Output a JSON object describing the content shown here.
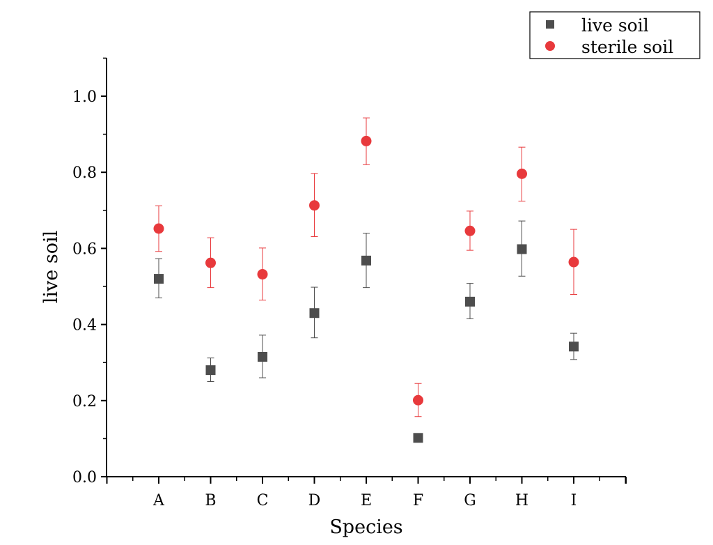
{
  "chart_data": {
    "type": "scatter",
    "title": "",
    "xlabel": "Species",
    "ylabel": "live soil",
    "categories": [
      "A",
      "B",
      "C",
      "D",
      "E",
      "F",
      "G",
      "H",
      "I"
    ],
    "ylim": [
      0,
      1.1
    ],
    "yticks": [
      "0.0",
      "0.2",
      "0.4",
      "0.6",
      "0.8",
      "1.0"
    ],
    "grid": false,
    "legend_position": "top-right",
    "series": [
      {
        "name": "live soil",
        "marker": "square",
        "color": "#4d4d4d",
        "values": [
          0.52,
          0.28,
          0.315,
          0.43,
          0.568,
          0.102,
          0.46,
          0.598,
          0.342
        ],
        "err_low": [
          0.47,
          0.25,
          0.26,
          0.365,
          0.497,
          0.098,
          0.415,
          0.527,
          0.308
        ],
        "err_high": [
          0.573,
          0.312,
          0.372,
          0.498,
          0.64,
          0.106,
          0.508,
          0.672,
          0.377
        ]
      },
      {
        "name": "sterile soil",
        "marker": "circle",
        "color": "#e8393c",
        "values": [
          0.652,
          0.562,
          0.532,
          0.713,
          0.882,
          0.201,
          0.646,
          0.796,
          0.564
        ],
        "err_low": [
          0.592,
          0.497,
          0.464,
          0.631,
          0.82,
          0.158,
          0.595,
          0.724,
          0.479
        ],
        "err_high": [
          0.712,
          0.628,
          0.601,
          0.797,
          0.943,
          0.245,
          0.698,
          0.866,
          0.65
        ]
      }
    ]
  }
}
